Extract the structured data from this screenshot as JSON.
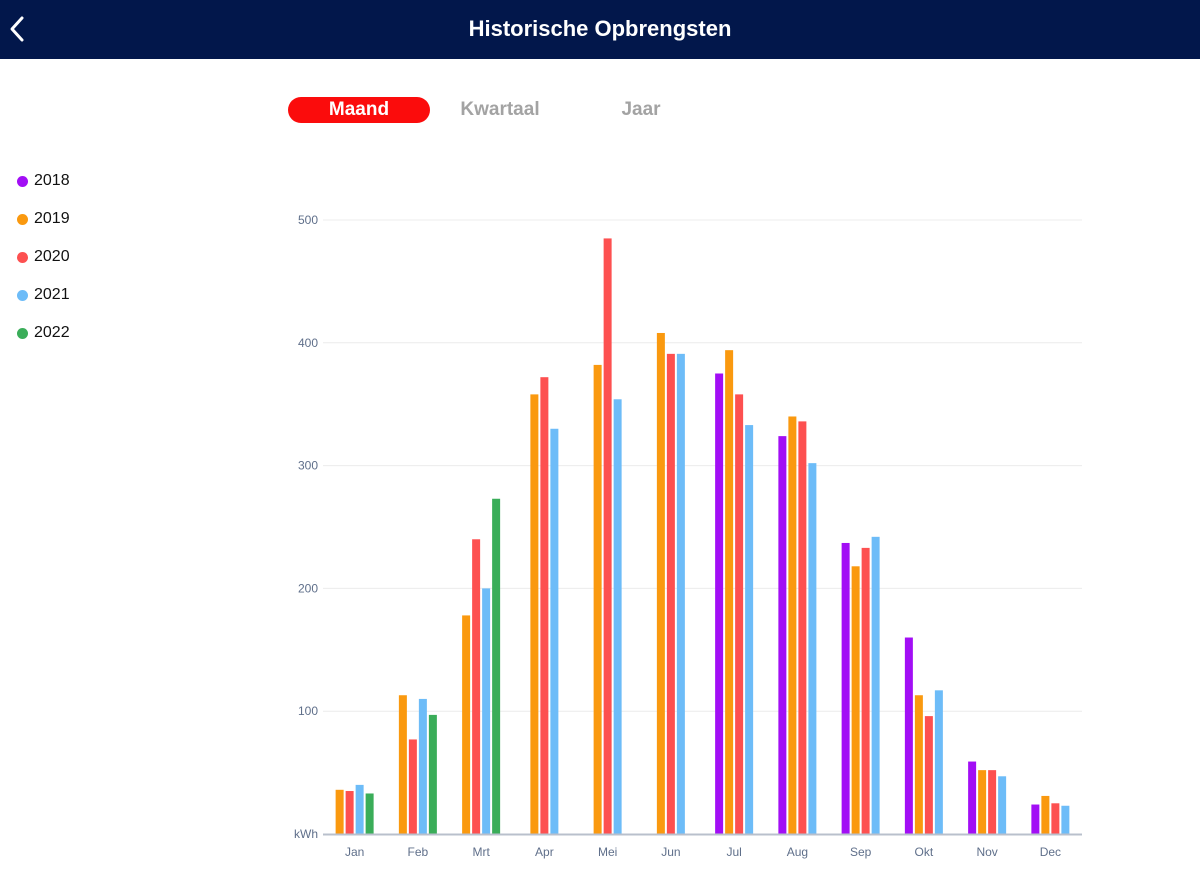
{
  "header": {
    "title": "Historische Opbrengsten",
    "back_icon": "chevron-left-icon"
  },
  "segments": [
    {
      "label": "Maand",
      "active": true
    },
    {
      "label": "Kwartaal",
      "active": false
    },
    {
      "label": "Jaar",
      "active": false
    }
  ],
  "colors": {
    "header_bg": "#02174b",
    "active_segment": "#fb0c0c",
    "inactive_segment_text": "#a3a3a3"
  },
  "chart_data": {
    "type": "bar",
    "title": "",
    "xlabel": "",
    "ylabel": "kWh",
    "ylim": [
      0,
      500
    ],
    "yticks": [
      100,
      200,
      300,
      400,
      500
    ],
    "grid": true,
    "legend_placement": "left",
    "categories": [
      "Jan",
      "Feb",
      "Mrt",
      "Apr",
      "Mei",
      "Jun",
      "Jul",
      "Aug",
      "Sep",
      "Okt",
      "Nov",
      "Dec"
    ],
    "series": [
      {
        "name": "2018",
        "color": "#a20ef5",
        "values": [
          null,
          null,
          null,
          null,
          null,
          null,
          375,
          324,
          237,
          160,
          59,
          24
        ]
      },
      {
        "name": "2019",
        "color": "#fa990f",
        "values": [
          36,
          113,
          178,
          358,
          382,
          408,
          394,
          340,
          218,
          113,
          52,
          31
        ]
      },
      {
        "name": "2020",
        "color": "#fd5050",
        "values": [
          35,
          77,
          240,
          372,
          485,
          391,
          358,
          336,
          233,
          96,
          52,
          25
        ]
      },
      {
        "name": "2021",
        "color": "#6dbcf8",
        "values": [
          40,
          110,
          200,
          330,
          354,
          391,
          333,
          302,
          242,
          117,
          47,
          23
        ]
      },
      {
        "name": "2022",
        "color": "#3aad59",
        "values": [
          33,
          97,
          273,
          null,
          null,
          null,
          null,
          null,
          null,
          null,
          null,
          null
        ]
      }
    ]
  }
}
